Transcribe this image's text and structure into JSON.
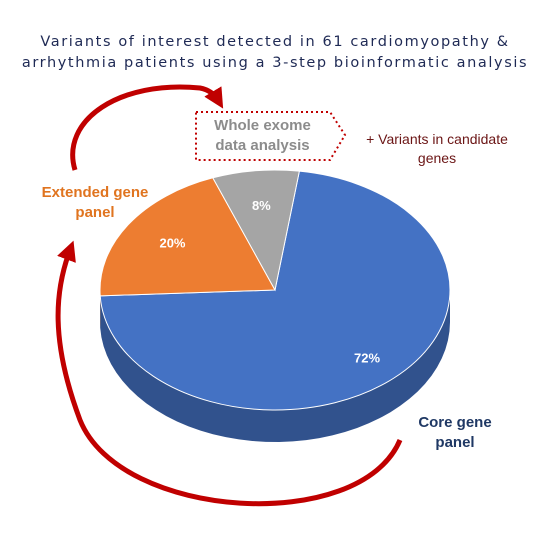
{
  "chart_data": {
    "type": "pie",
    "title": [
      "Variants of interest detected in 61 cardiomyopathy &",
      "arrhythmia patients using a 3-step bioinformatic analysis"
    ],
    "categories": [
      "Core gene panel",
      "Extended gene panel",
      "Whole exome data analysis"
    ],
    "values": [
      72,
      20,
      8
    ],
    "value_labels": [
      "72%",
      "20%",
      "8%"
    ],
    "colors": [
      "#4472c4",
      "#ed7d31",
      "#a5a5a5"
    ],
    "annotation": "+ Variants in candidate genes"
  }
}
